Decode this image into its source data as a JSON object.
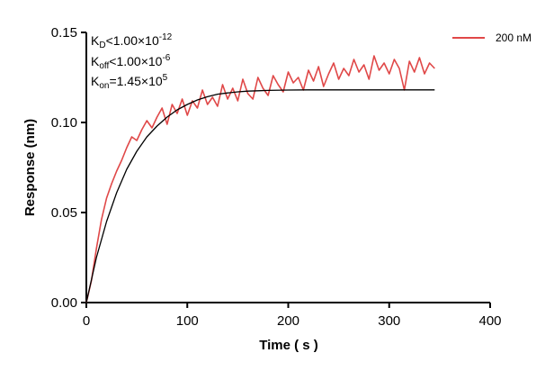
{
  "chart_data": {
    "type": "line",
    "xlabel": "Time ( s )",
    "ylabel": "Response (nm)",
    "xlim": [
      0,
      400
    ],
    "ylim": [
      0,
      0.15
    ],
    "x_ticks": [
      "0",
      "100",
      "200",
      "300",
      "400"
    ],
    "y_ticks": [
      "0.00",
      "0.05",
      "0.10",
      "0.15"
    ],
    "grid": false,
    "legend_position": "top-right",
    "annotations": {
      "kd": {
        "base": "K",
        "sub": "D",
        "mid": "<1.00×10",
        "sup": "-12"
      },
      "koff": {
        "base": "K",
        "sub": "off",
        "mid": "<1.00×10",
        "sup": "-6"
      },
      "kon": {
        "base": "K",
        "sub": "on",
        "mid": "=1.45×10",
        "sup": "5"
      }
    },
    "series": [
      {
        "name": "200 nM",
        "color": "#e04848",
        "x": [
          0,
          5,
          10,
          15,
          20,
          25,
          30,
          35,
          40,
          45,
          50,
          55,
          60,
          65,
          70,
          75,
          80,
          85,
          90,
          95,
          100,
          105,
          110,
          115,
          120,
          125,
          130,
          135,
          140,
          145,
          150,
          155,
          160,
          165,
          170,
          175,
          180,
          185,
          190,
          195,
          200,
          205,
          210,
          215,
          220,
          225,
          230,
          235,
          240,
          245,
          250,
          255,
          260,
          265,
          270,
          275,
          280,
          285,
          290,
          295,
          300,
          305,
          310,
          315,
          320,
          325,
          330,
          335,
          340,
          345
        ],
        "y": [
          0.0,
          0.012,
          0.03,
          0.046,
          0.058,
          0.066,
          0.073,
          0.079,
          0.086,
          0.092,
          0.09,
          0.096,
          0.101,
          0.097,
          0.103,
          0.108,
          0.099,
          0.11,
          0.105,
          0.113,
          0.104,
          0.112,
          0.108,
          0.118,
          0.11,
          0.114,
          0.109,
          0.121,
          0.113,
          0.119,
          0.112,
          0.124,
          0.116,
          0.113,
          0.125,
          0.119,
          0.115,
          0.126,
          0.121,
          0.117,
          0.128,
          0.122,
          0.125,
          0.118,
          0.129,
          0.123,
          0.131,
          0.12,
          0.127,
          0.133,
          0.124,
          0.13,
          0.126,
          0.135,
          0.128,
          0.132,
          0.124,
          0.137,
          0.129,
          0.133,
          0.127,
          0.135,
          0.13,
          0.118,
          0.134,
          0.128,
          0.136,
          0.127,
          0.133,
          0.13
        ]
      },
      {
        "name": "",
        "color": "#000000",
        "kind": "fit",
        "x": [
          0,
          10,
          20,
          30,
          40,
          50,
          60,
          70,
          80,
          90,
          100,
          110,
          120,
          130,
          140,
          150,
          160,
          170,
          180,
          200,
          220,
          240,
          260,
          280,
          300,
          320,
          345
        ],
        "y": [
          0.0,
          0.025,
          0.045,
          0.061,
          0.074,
          0.084,
          0.092,
          0.098,
          0.103,
          0.107,
          0.11,
          0.1125,
          0.1143,
          0.1157,
          0.1164,
          0.117,
          0.1174,
          0.1176,
          0.1178,
          0.118,
          0.1181,
          0.1181,
          0.1181,
          0.1181,
          0.1181,
          0.1181,
          0.1181
        ]
      }
    ]
  }
}
